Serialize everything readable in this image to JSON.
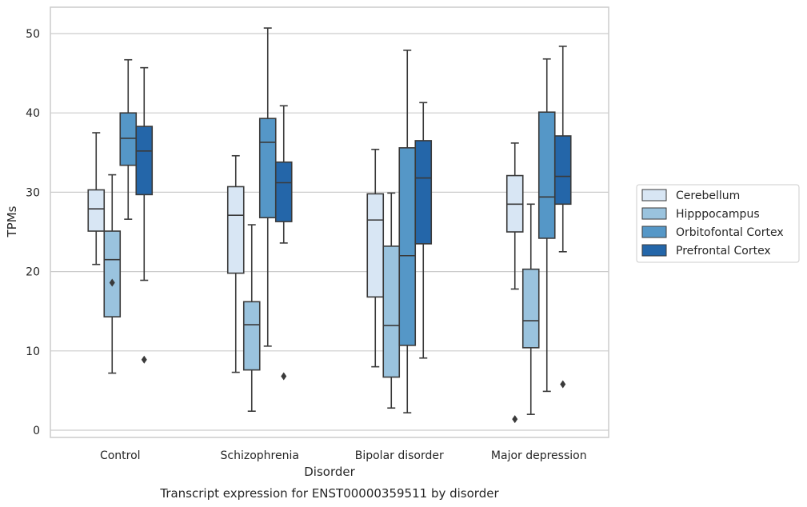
{
  "chart_data": {
    "type": "box",
    "caption": "Transcript expression for ENST00000359511 by disorder",
    "xlabel": "Disorder",
    "ylabel": "TPMs",
    "ylim": [
      -1,
      53
    ],
    "yticks": [
      0,
      10,
      20,
      30,
      40,
      50
    ],
    "grid": "horizontal",
    "legend_position": "right",
    "categories": [
      "Control",
      "Schizophrenia",
      "Bipolar disorder",
      "Major depression"
    ],
    "series": [
      {
        "name": "Cerebellum",
        "color": "#d8e6f4",
        "boxes": [
          {
            "whisker_low": 20.9,
            "q1": 25.1,
            "median": 27.9,
            "q3": 30.3,
            "whisker_high": 37.5,
            "outliers": []
          },
          {
            "whisker_low": 7.3,
            "q1": 19.8,
            "median": 27.1,
            "q3": 30.7,
            "whisker_high": 34.6,
            "outliers": []
          },
          {
            "whisker_low": 8.0,
            "q1": 16.8,
            "median": 26.5,
            "q3": 29.8,
            "whisker_high": 35.4,
            "outliers": []
          },
          {
            "whisker_low": 17.8,
            "q1": 25.0,
            "median": 28.5,
            "q3": 32.1,
            "whisker_high": 36.2,
            "outliers": [
              1.4
            ]
          }
        ]
      },
      {
        "name": "Hipppocampus",
        "color": "#9ac3de",
        "boxes": [
          {
            "whisker_low": 7.2,
            "q1": 14.3,
            "median": 21.5,
            "q3": 25.1,
            "whisker_high": 32.2,
            "outliers": [
              18.6
            ]
          },
          {
            "whisker_low": 2.4,
            "q1": 7.6,
            "median": 13.3,
            "q3": 16.2,
            "whisker_high": 25.9,
            "outliers": []
          },
          {
            "whisker_low": 2.8,
            "q1": 6.7,
            "median": 13.2,
            "q3": 23.2,
            "whisker_high": 29.9,
            "outliers": []
          },
          {
            "whisker_low": 2.0,
            "q1": 10.4,
            "median": 13.8,
            "q3": 20.3,
            "whisker_high": 28.5,
            "outliers": []
          }
        ]
      },
      {
        "name": "Orbitofontal Cortex",
        "color": "#5597c7",
        "boxes": [
          {
            "whisker_low": 26.6,
            "q1": 33.4,
            "median": 36.8,
            "q3": 40.0,
            "whisker_high": 46.7,
            "outliers": []
          },
          {
            "whisker_low": 10.6,
            "q1": 26.8,
            "median": 36.3,
            "q3": 39.3,
            "whisker_high": 50.7,
            "outliers": []
          },
          {
            "whisker_low": 2.2,
            "q1": 10.7,
            "median": 22.0,
            "q3": 35.6,
            "whisker_high": 47.9,
            "outliers": []
          },
          {
            "whisker_low": 4.9,
            "q1": 24.2,
            "median": 29.4,
            "q3": 40.1,
            "whisker_high": 46.8,
            "outliers": []
          }
        ]
      },
      {
        "name": "Prefrontal Cortex",
        "color": "#2466a9",
        "boxes": [
          {
            "whisker_low": 18.9,
            "q1": 29.7,
            "median": 35.2,
            "q3": 38.3,
            "whisker_high": 45.7,
            "outliers": [
              8.9
            ]
          },
          {
            "whisker_low": 23.6,
            "q1": 26.3,
            "median": 31.2,
            "q3": 33.8,
            "whisker_high": 40.9,
            "outliers": [
              6.8
            ]
          },
          {
            "whisker_low": 9.1,
            "q1": 23.5,
            "median": 31.8,
            "q3": 36.5,
            "whisker_high": 41.3,
            "outliers": []
          },
          {
            "whisker_low": 22.5,
            "q1": 28.5,
            "median": 32.0,
            "q3": 37.1,
            "whisker_high": 48.4,
            "outliers": [
              5.8
            ]
          }
        ]
      }
    ]
  }
}
